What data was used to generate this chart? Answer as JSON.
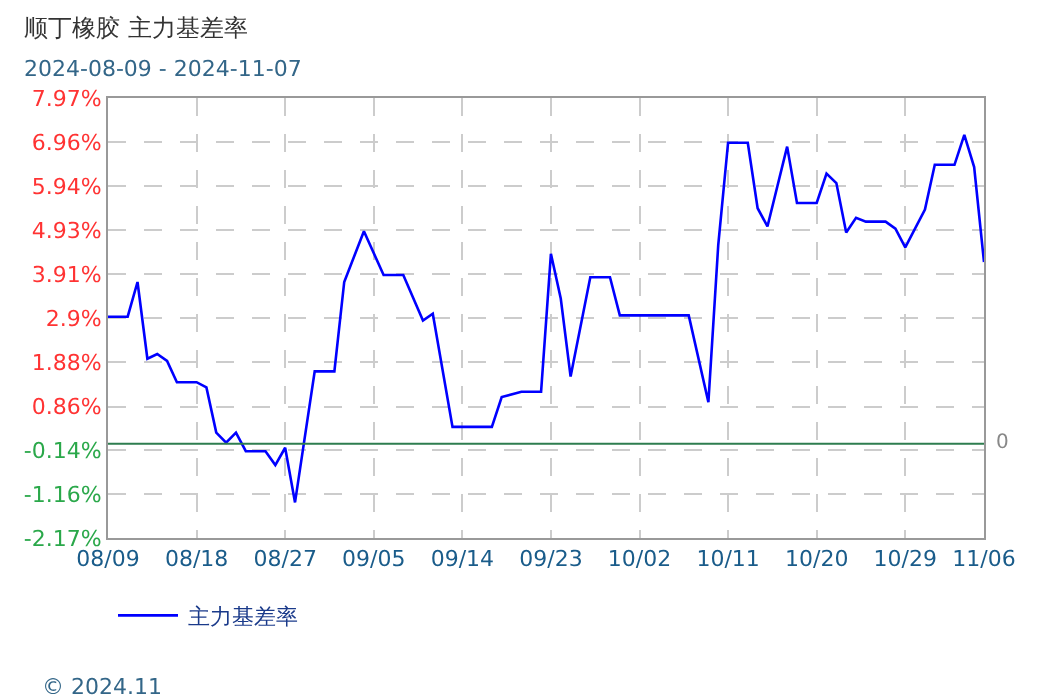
{
  "chart_data": {
    "type": "line",
    "title": "顺丁橡胶 主力基差率",
    "subtitle": "2024-08-09 - 2024-11-07",
    "annotations": [
      "© 2024.11"
    ],
    "x": [
      "2024-08-09",
      "2024-08-11",
      "2024-08-12",
      "2024-08-13",
      "2024-08-14",
      "2024-08-15",
      "2024-08-16",
      "2024-08-18",
      "2024-08-19",
      "2024-08-20",
      "2024-08-21",
      "2024-08-22",
      "2024-08-23",
      "2024-08-25",
      "2024-08-26",
      "2024-08-27",
      "2024-08-28",
      "2024-08-30",
      "2024-09-01",
      "2024-09-02",
      "2024-09-04",
      "2024-09-06",
      "2024-09-08",
      "2024-09-10",
      "2024-09-11",
      "2024-09-13",
      "2024-09-17",
      "2024-09-18",
      "2024-09-20",
      "2024-09-22",
      "2024-09-23",
      "2024-09-24",
      "2024-09-25",
      "2024-09-27",
      "2024-09-29",
      "2024-09-30",
      "2024-10-07",
      "2024-10-09",
      "2024-10-10",
      "2024-10-11",
      "2024-10-13",
      "2024-10-14",
      "2024-10-15",
      "2024-10-17",
      "2024-10-18",
      "2024-10-20",
      "2024-10-21",
      "2024-10-22",
      "2024-10-23",
      "2024-10-24",
      "2024-10-25",
      "2024-10-27",
      "2024-10-28",
      "2024-10-29",
      "2024-10-31",
      "2024-11-01",
      "2024-11-03",
      "2024-11-04",
      "2024-11-05",
      "2024-11-06"
    ],
    "series": [
      {
        "name": "主力基差率",
        "color": "#0000ff",
        "values": [
          2.93,
          2.93,
          3.73,
          1.96,
          2.07,
          1.91,
          1.42,
          1.42,
          1.3,
          0.26,
          0.03,
          0.26,
          -0.17,
          -0.17,
          -0.49,
          -0.09,
          -1.35,
          1.67,
          1.67,
          3.73,
          4.9,
          3.89,
          3.89,
          2.84,
          3.0,
          0.39,
          0.39,
          1.08,
          1.2,
          1.2,
          4.38,
          3.35,
          1.55,
          3.84,
          3.84,
          2.96,
          2.96,
          0.96,
          4.58,
          6.94,
          6.94,
          5.43,
          5.01,
          6.85,
          5.55,
          5.55,
          6.23,
          6.01,
          4.87,
          5.21,
          5.12,
          5.12,
          4.96,
          4.53,
          5.4,
          6.43,
          6.43,
          7.12,
          6.38,
          4.19
        ]
      }
    ],
    "xlim": [
      "2024-08-09",
      "2024-11-06"
    ],
    "xticks": [
      {
        "value": "2024-08-09",
        "label": "08/09"
      },
      {
        "value": "2024-08-18",
        "label": "08/18"
      },
      {
        "value": "2024-08-27",
        "label": "08/27"
      },
      {
        "value": "2024-09-05",
        "label": "09/05"
      },
      {
        "value": "2024-09-14",
        "label": "09/14"
      },
      {
        "value": "2024-09-23",
        "label": "09/23"
      },
      {
        "value": "2024-10-02",
        "label": "10/02"
      },
      {
        "value": "2024-10-11",
        "label": "10/11"
      },
      {
        "value": "2024-10-20",
        "label": "10/20"
      },
      {
        "value": "2024-10-29",
        "label": "10/29"
      },
      {
        "value": "2024-11-06",
        "label": "11/06"
      }
    ],
    "ylim": [
      -2.17,
      7.97
    ],
    "yticks": [
      {
        "value": 7.97,
        "label": "7.97%"
      },
      {
        "value": 6.96,
        "label": "6.96%"
      },
      {
        "value": 5.94,
        "label": "5.94%"
      },
      {
        "value": 4.93,
        "label": "4.93%"
      },
      {
        "value": 3.91,
        "label": "3.91%"
      },
      {
        "value": 2.9,
        "label": "2.9%"
      },
      {
        "value": 1.88,
        "label": "1.88%"
      },
      {
        "value": 0.86,
        "label": "0.86%"
      },
      {
        "value": -0.14,
        "label": "-0.14%"
      },
      {
        "value": -1.16,
        "label": "-1.16%"
      },
      {
        "value": -2.17,
        "label": "-2.17%"
      }
    ],
    "ref_lines": [
      {
        "axis": "y",
        "value": 0,
        "label": "0",
        "color": "#2e7d4f"
      }
    ],
    "grid": true,
    "legend": "bottom left",
    "marker": "none",
    "line_style": "solid"
  }
}
